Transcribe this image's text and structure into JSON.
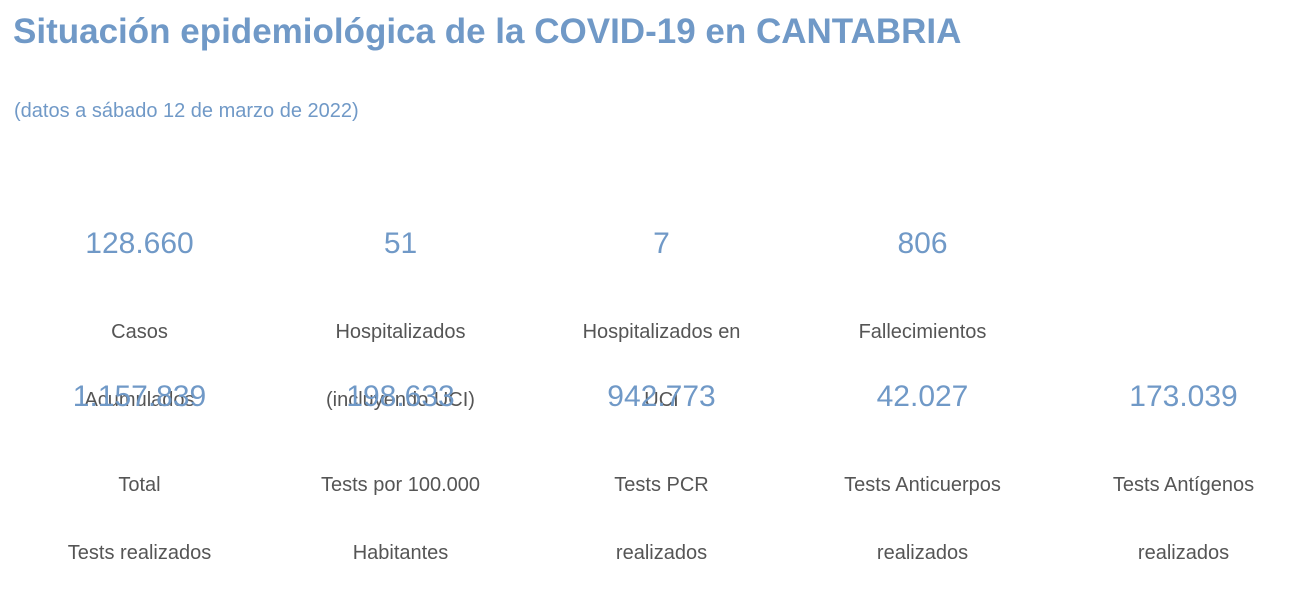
{
  "header": {
    "title": "Situación epidemiológica de la COVID-19 en CANTABRIA",
    "subtitle": "(datos a sábado 12 de marzo de 2022)"
  },
  "stats_row1": [
    {
      "value": "128.660",
      "label_l1": "Casos",
      "label_l2": "Acumulados"
    },
    {
      "value": "51",
      "label_l1": "Hospitalizados",
      "label_l2": "(incluyendo UCI)"
    },
    {
      "value": "7",
      "label_l1": "Hospitalizados en",
      "label_l2": "UCI"
    },
    {
      "value": "806",
      "label_l1": "Fallecimientos",
      "label_l2": ""
    }
  ],
  "stats_row2": [
    {
      "value": "1.157.839",
      "label_l1": "Total",
      "label_l2": "Tests realizados"
    },
    {
      "value": "198.633",
      "label_l1": "Tests por 100.000",
      "label_l2": "Habitantes"
    },
    {
      "value": "942.773",
      "label_l1": " Tests PCR",
      "label_l2": "realizados"
    },
    {
      "value": "42.027",
      "label_l1": "Tests Anticuerpos",
      "label_l2": "realizados"
    },
    {
      "value": "173.039",
      "label_l1": "Tests Antígenos",
      "label_l2": "realizados"
    }
  ],
  "colors": {
    "accent": "#7099c7",
    "label_text": "#555555",
    "background": "#ffffff"
  }
}
